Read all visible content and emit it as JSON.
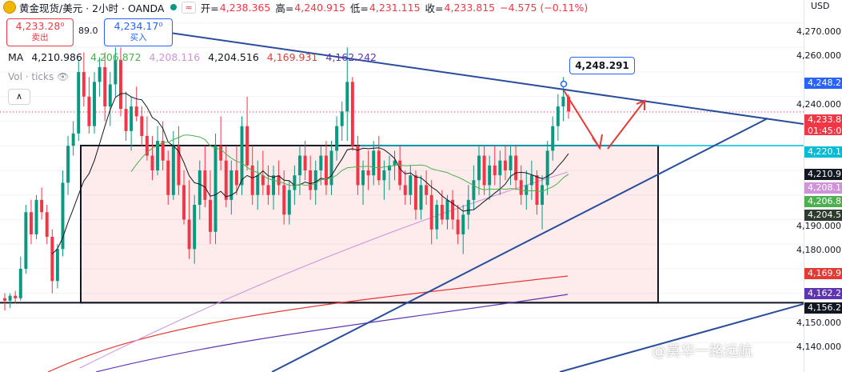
{
  "header": {
    "symbol": "黄金现货/美元 · 2小时 · OANDA",
    "open_label": "开=",
    "open": "4,238.365",
    "high_label": "高=",
    "high": "4,240.915",
    "low_label": "低=",
    "low": "4,231.115",
    "close_label": "收=",
    "close": "4,233.815",
    "change": "−4.575 (−0.11%)",
    "alert_glyph": "≈"
  },
  "trade": {
    "sell_price": "4,233.28⁰",
    "sell_label": "卖出",
    "buy_price": "4,234.17⁰",
    "buy_label": "买入",
    "spread": "89.0"
  },
  "ma_row": {
    "label": "MA",
    "values": [
      "4,210.986",
      "4,206.872",
      "4,208.116",
      "4,204.516",
      "4,169.931",
      "4,162.242"
    ],
    "colors": [
      "#131722",
      "#4caf50",
      "#ce93d8",
      "#131722",
      "#e53935",
      "#5e35b1"
    ]
  },
  "volume": {
    "label": "Vol · ticks"
  },
  "callout": {
    "value": "4,248.291"
  },
  "price_axis": {
    "currency": "USD",
    "ticks": [
      "4,270.000",
      "4,260.000",
      "4,240.000",
      "4,190.000",
      "4,180.000",
      "4,150.000",
      "4,140.000"
    ],
    "tags": [
      {
        "text": "4,248.2",
        "color": "#2962ff"
      },
      {
        "text": "4,233.8",
        "sub": "01:45:0",
        "color": "#f23645"
      },
      {
        "text": "4,220.1",
        "color": "#00bcd4"
      },
      {
        "text": "4,210.9",
        "color": "#131722"
      },
      {
        "text": "4,208.1",
        "color": "#ce93d8"
      },
      {
        "text": "4,206.8",
        "color": "#4caf50"
      },
      {
        "text": "4,204.5",
        "color": "#2e3b2e"
      },
      {
        "text": "4,169.9",
        "color": "#e53935"
      },
      {
        "text": "4,162.2",
        "color": "#5e35b1"
      },
      {
        "text": "4,156.2",
        "color": "#131722"
      }
    ]
  },
  "watermark": "@莫华一路远航",
  "chart_data": {
    "type": "candlestick",
    "title": "黄金现货/美元 · 2小时 · OANDA",
    "ylim": [
      4128,
      4278
    ],
    "candles": [
      [
        4158,
        4160,
        4153,
        4157
      ],
      [
        4157,
        4160,
        4154,
        4159
      ],
      [
        4159,
        4161,
        4156,
        4158
      ],
      [
        4158,
        4175,
        4157,
        4170
      ],
      [
        4170,
        4196,
        4168,
        4193
      ],
      [
        4193,
        4198,
        4180,
        4184
      ],
      [
        4184,
        4200,
        4182,
        4198
      ],
      [
        4198,
        4203,
        4190,
        4193
      ],
      [
        4193,
        4196,
        4180,
        4183
      ],
      [
        4183,
        4186,
        4160,
        4165
      ],
      [
        4165,
        4180,
        4162,
        4178
      ],
      [
        4178,
        4210,
        4175,
        4205
      ],
      [
        4205,
        4224,
        4200,
        4220
      ],
      [
        4220,
        4230,
        4216,
        4225
      ],
      [
        4225,
        4255,
        4222,
        4250
      ],
      [
        4250,
        4258,
        4236,
        4240
      ],
      [
        4240,
        4248,
        4225,
        4228
      ],
      [
        4228,
        4250,
        4225,
        4246
      ],
      [
        4246,
        4256,
        4240,
        4252
      ],
      [
        4252,
        4258,
        4230,
        4236
      ],
      [
        4236,
        4250,
        4228,
        4245
      ],
      [
        4245,
        4260,
        4240,
        4255
      ],
      [
        4255,
        4260,
        4232,
        4235
      ],
      [
        4235,
        4242,
        4222,
        4226
      ],
      [
        4226,
        4240,
        4218,
        4236
      ],
      [
        4236,
        4244,
        4230,
        4232
      ],
      [
        4232,
        4236,
        4220,
        4224
      ],
      [
        4224,
        4232,
        4214,
        4216
      ],
      [
        4216,
        4224,
        4206,
        4210
      ],
      [
        4210,
        4228,
        4208,
        4222
      ],
      [
        4222,
        4230,
        4210,
        4214
      ],
      [
        4214,
        4218,
        4196,
        4200
      ],
      [
        4200,
        4226,
        4198,
        4220
      ],
      [
        4220,
        4228,
        4200,
        4204
      ],
      [
        4204,
        4210,
        4188,
        4190
      ],
      [
        4190,
        4206,
        4174,
        4178
      ],
      [
        4178,
        4200,
        4172,
        4196
      ],
      [
        4196,
        4214,
        4190,
        4210
      ],
      [
        4210,
        4220,
        4195,
        4198
      ],
      [
        4198,
        4210,
        4180,
        4185
      ],
      [
        4185,
        4225,
        4180,
        4220
      ],
      [
        4220,
        4232,
        4210,
        4214
      ],
      [
        4214,
        4220,
        4195,
        4198
      ],
      [
        4198,
        4214,
        4192,
        4210
      ],
      [
        4210,
        4220,
        4200,
        4204
      ],
      [
        4204,
        4232,
        4200,
        4228
      ],
      [
        4228,
        4240,
        4210,
        4212
      ],
      [
        4212,
        4220,
        4196,
        4200
      ],
      [
        4200,
        4214,
        4194,
        4208
      ],
      [
        4208,
        4218,
        4200,
        4204
      ],
      [
        4204,
        4212,
        4196,
        4200
      ],
      [
        4200,
        4212,
        4194,
        4208
      ],
      [
        4208,
        4214,
        4200,
        4204
      ],
      [
        4204,
        4210,
        4188,
        4192
      ],
      [
        4192,
        4206,
        4188,
        4202
      ],
      [
        4202,
        4212,
        4196,
        4208
      ],
      [
        4208,
        4220,
        4200,
        4216
      ],
      [
        4216,
        4222,
        4206,
        4210
      ],
      [
        4210,
        4216,
        4198,
        4202
      ],
      [
        4202,
        4214,
        4196,
        4210
      ],
      [
        4210,
        4220,
        4204,
        4216
      ],
      [
        4216,
        4222,
        4200,
        4204
      ],
      [
        4204,
        4222,
        4200,
        4218
      ],
      [
        4218,
        4232,
        4214,
        4228
      ],
      [
        4228,
        4238,
        4222,
        4234
      ],
      [
        4234,
        4260,
        4222,
        4246
      ],
      [
        4246,
        4248,
        4218,
        4220
      ],
      [
        4220,
        4224,
        4200,
        4204
      ],
      [
        4204,
        4214,
        4196,
        4210
      ],
      [
        4210,
        4218,
        4202,
        4208
      ],
      [
        4208,
        4222,
        4204,
        4218
      ],
      [
        4218,
        4224,
        4204,
        4206
      ],
      [
        4206,
        4214,
        4198,
        4210
      ],
      [
        4210,
        4216,
        4202,
        4212
      ],
      [
        4212,
        4218,
        4206,
        4214
      ],
      [
        4214,
        4220,
        4202,
        4204
      ],
      [
        4204,
        4210,
        4196,
        4200
      ],
      [
        4200,
        4212,
        4196,
        4208
      ],
      [
        4208,
        4210,
        4190,
        4194
      ],
      [
        4194,
        4208,
        4190,
        4204
      ],
      [
        4204,
        4210,
        4196,
        4200
      ],
      [
        4200,
        4206,
        4180,
        4186
      ],
      [
        4186,
        4198,
        4182,
        4196
      ],
      [
        4196,
        4202,
        4188,
        4190
      ],
      [
        4190,
        4200,
        4186,
        4198
      ],
      [
        4198,
        4202,
        4186,
        4190
      ],
      [
        4190,
        4196,
        4180,
        4184
      ],
      [
        4184,
        4196,
        4176,
        4192
      ],
      [
        4192,
        4204,
        4186,
        4198
      ],
      [
        4198,
        4212,
        4194,
        4206
      ],
      [
        4206,
        4220,
        4200,
        4216
      ],
      [
        4216,
        4220,
        4200,
        4204
      ],
      [
        4204,
        4216,
        4198,
        4212
      ],
      [
        4212,
        4220,
        4204,
        4208
      ],
      [
        4208,
        4218,
        4200,
        4214
      ],
      [
        4214,
        4220,
        4206,
        4210
      ],
      [
        4210,
        4220,
        4204,
        4216
      ],
      [
        4216,
        4220,
        4202,
        4206
      ],
      [
        4206,
        4212,
        4196,
        4200
      ],
      [
        4200,
        4210,
        4194,
        4204
      ],
      [
        4204,
        4214,
        4198,
        4208
      ],
      [
        4208,
        4210,
        4192,
        4196
      ],
      [
        4196,
        4208,
        4186,
        4204
      ],
      [
        4204,
        4222,
        4200,
        4218
      ],
      [
        4218,
        4232,
        4214,
        4228
      ],
      [
        4228,
        4241,
        4222,
        4236
      ],
      [
        4236,
        4248,
        4230,
        4240
      ],
      [
        4240,
        4241,
        4231,
        4234
      ]
    ],
    "support_box": {
      "top": 4220.1,
      "bottom": 4156.2
    },
    "moving_averages": [
      "4,210.986",
      "4,206.872",
      "4,208.116",
      "4,204.516",
      "4,169.931",
      "4,162.242"
    ]
  }
}
